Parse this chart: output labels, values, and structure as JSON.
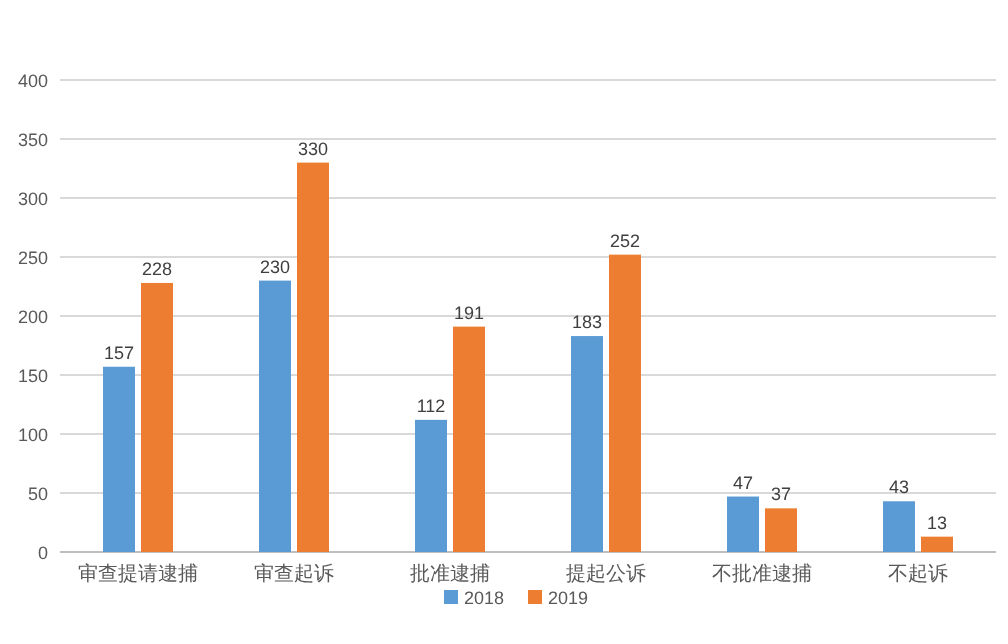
{
  "chart_data": {
    "type": "bar",
    "categories": [
      "审查提请逮捕",
      "审查起诉",
      "批准逮捕",
      "提起公诉",
      "不批准逮捕",
      "不起诉"
    ],
    "series": [
      {
        "name": "2018",
        "color": "#5b9bd5",
        "values": [
          157,
          230,
          112,
          183,
          47,
          43
        ]
      },
      {
        "name": "2019",
        "color": "#ed7d31",
        "values": [
          228,
          330,
          191,
          252,
          37,
          13
        ]
      }
    ],
    "ylim": [
      0,
      400
    ],
    "yticks": [
      0,
      50,
      100,
      150,
      200,
      250,
      300,
      350,
      400
    ],
    "grid": "y",
    "legend": "bottom",
    "data_labels": true
  }
}
